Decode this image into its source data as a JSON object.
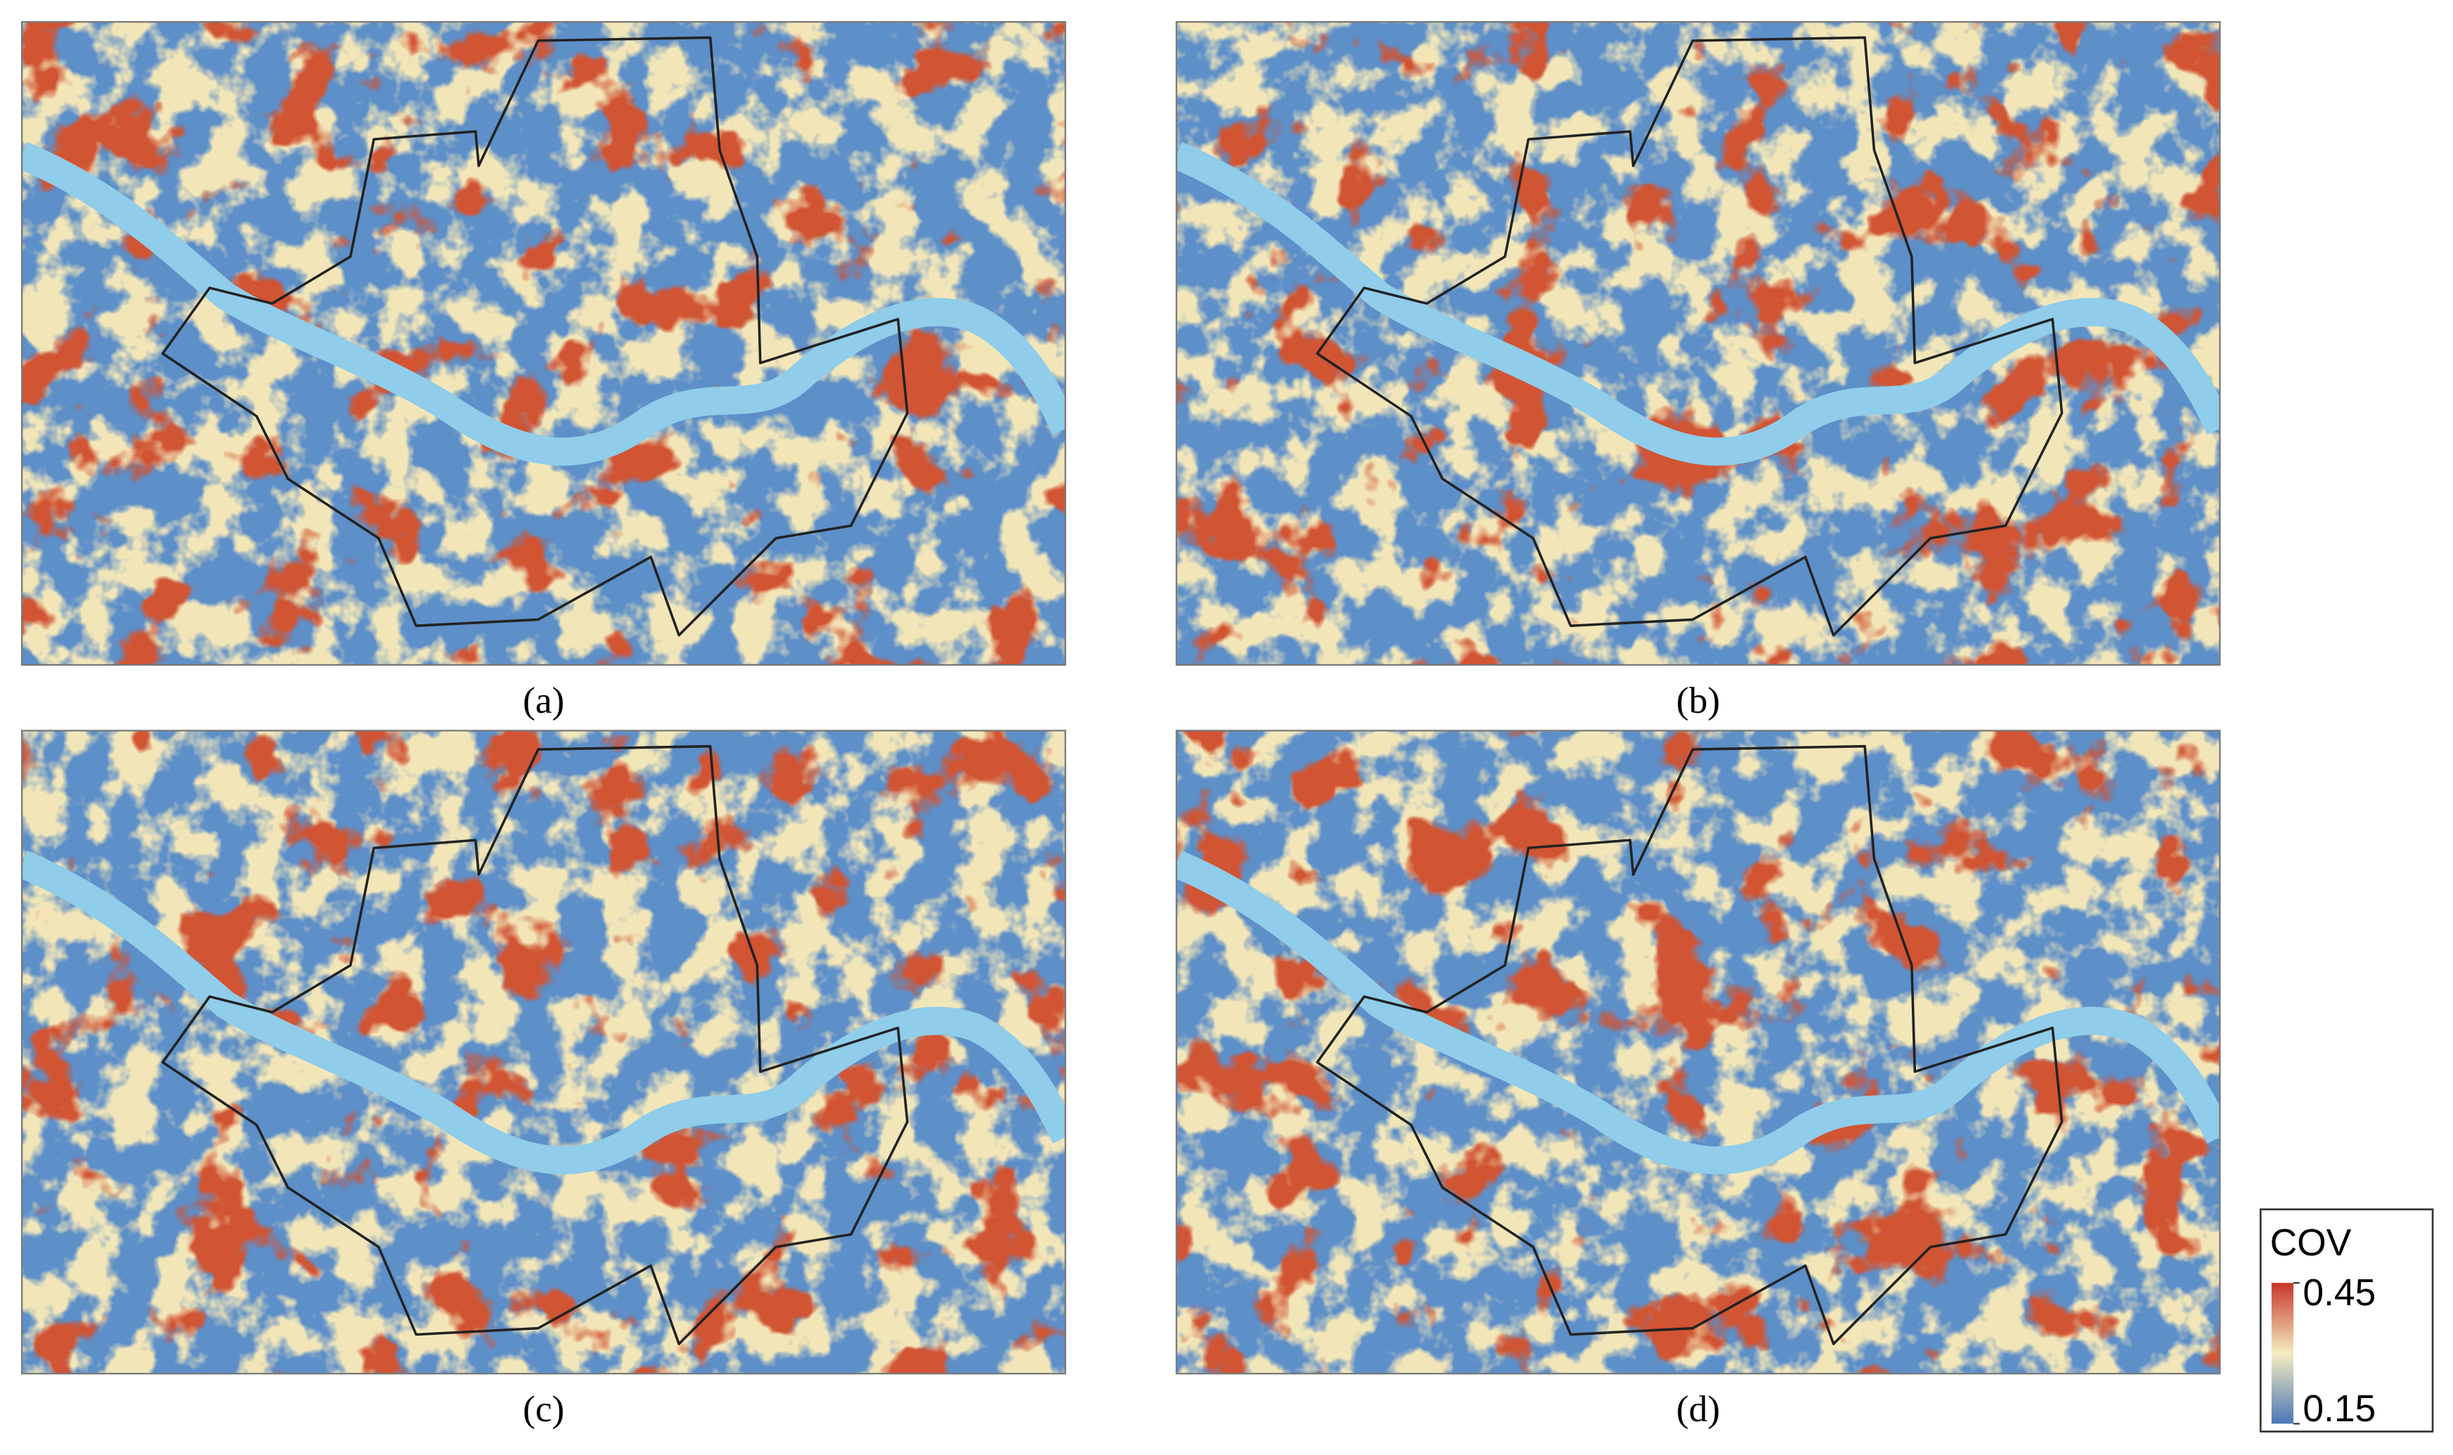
{
  "panels": [
    {
      "label": "(a)"
    },
    {
      "label": "(b)"
    },
    {
      "label": "(c)"
    },
    {
      "label": "(d)"
    }
  ],
  "legend": {
    "title": "COV",
    "max": 0.45,
    "min": 0.15
  }
}
